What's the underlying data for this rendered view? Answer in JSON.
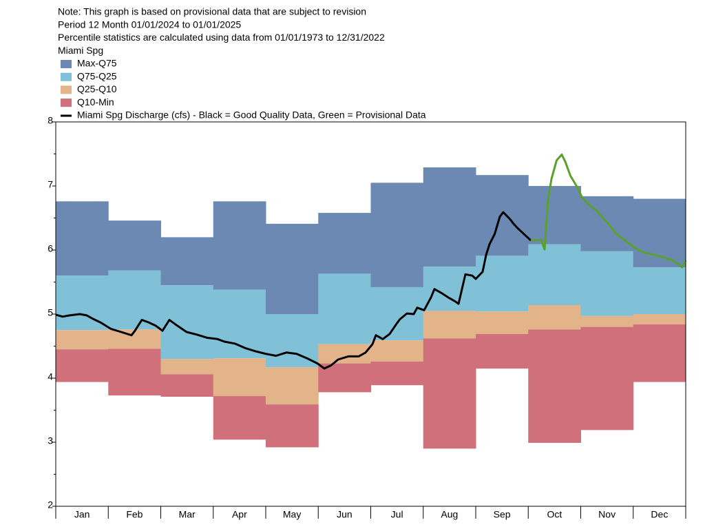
{
  "chart_data": {
    "type": "percentile-band",
    "notes": [
      "Note: This graph is based on provisional data that are subject to revision",
      "Period    12 Month    01/01/2024  to  01/01/2025",
      "Percentile statistics are calculated using data from 01/01/1973 to 12/31/2022",
      "Miami Spg"
    ],
    "categories": [
      "Jan",
      "Feb",
      "Mar",
      "Apr",
      "May",
      "Jun",
      "Jul",
      "Aug",
      "Sep",
      "Oct",
      "Nov",
      "Dec"
    ],
    "levels": [
      [
        6.76,
        6.46,
        6.2,
        6.76,
        6.41,
        6.58,
        7.05,
        7.29,
        7.17,
        7.0,
        6.84,
        6.8
      ],
      [
        5.6,
        5.68,
        5.45,
        5.38,
        5.0,
        5.63,
        5.42,
        5.74,
        5.91,
        6.09,
        5.98,
        5.73
      ],
      [
        4.75,
        4.76,
        4.3,
        4.31,
        4.17,
        4.53,
        4.59,
        5.05,
        5.04,
        5.14,
        4.97,
        5.0
      ],
      [
        4.45,
        4.46,
        4.06,
        3.72,
        3.59,
        4.23,
        4.26,
        4.62,
        4.69,
        4.76,
        4.8,
        4.84
      ],
      [
        3.94,
        3.73,
        3.71,
        3.04,
        2.92,
        3.78,
        3.89,
        2.9,
        4.15,
        2.99,
        3.19,
        3.94
      ]
    ],
    "bands": [
      {
        "name": "Max-Q75",
        "color": "#6b89b2"
      },
      {
        "name": "Q75-Q25",
        "color": "#80c1d7"
      },
      {
        "name": "Q25-Q10",
        "color": "#e3b48a"
      },
      {
        "name": "Q10-Min",
        "color": "#d0707b"
      }
    ],
    "line_legend": "Miami Spg Discharge (cfs) - Black = Good Quality Data, Green = Provisional Data",
    "series": [
      {
        "color": "#000000",
        "x": [
          0,
          4,
          8,
          14,
          18,
          22,
          26,
          32,
          38,
          44,
          46,
          50,
          54,
          58,
          62,
          66,
          70,
          76,
          82,
          88,
          94,
          98,
          104,
          110,
          116,
          122,
          128,
          134,
          140,
          146,
          152,
          156,
          160,
          164,
          170,
          176,
          180,
          184,
          186,
          190,
          194,
          198,
          200,
          204,
          208,
          210,
          214,
          218,
          220,
          224,
          228,
          232,
          234,
          236,
          238,
          242,
          244,
          248,
          250,
          252,
          255,
          258,
          260,
          264,
          266,
          268,
          272,
          276
        ],
        "values": [
          4.99,
          4.96,
          4.98,
          5.0,
          4.98,
          4.92,
          4.87,
          4.77,
          4.72,
          4.67,
          4.74,
          4.91,
          4.87,
          4.82,
          4.74,
          4.91,
          4.83,
          4.72,
          4.68,
          4.63,
          4.61,
          4.57,
          4.54,
          4.47,
          4.42,
          4.38,
          4.35,
          4.4,
          4.38,
          4.31,
          4.23,
          4.15,
          4.2,
          4.29,
          4.34,
          4.34,
          4.4,
          4.53,
          4.67,
          4.61,
          4.69,
          4.85,
          4.92,
          5.01,
          5.0,
          5.1,
          5.06,
          5.26,
          5.39,
          5.33,
          5.26,
          5.2,
          5.16,
          5.39,
          5.62,
          5.6,
          5.55,
          5.66,
          5.92,
          6.09,
          6.25,
          6.52,
          6.59,
          6.48,
          6.41,
          6.35,
          6.25,
          6.15
        ]
      },
      {
        "color": "#5aa02c",
        "x": [
          276,
          282,
          284,
          286,
          288,
          291,
          294,
          296,
          299,
          303,
          306,
          310,
          314,
          320,
          326,
          332,
          338,
          342,
          348,
          354,
          358,
          362,
          364,
          366
        ],
        "values": [
          6.15,
          6.16,
          6.01,
          6.78,
          7.11,
          7.4,
          7.49,
          7.38,
          7.16,
          6.98,
          6.81,
          6.7,
          6.62,
          6.44,
          6.25,
          6.12,
          6.01,
          5.96,
          5.92,
          5.88,
          5.84,
          5.78,
          5.73,
          5.84
        ]
      }
    ],
    "xlim": [
      0,
      366
    ],
    "ylim": [
      2,
      8
    ],
    "yticks": [
      2,
      3,
      4,
      5,
      6,
      7,
      8
    ],
    "yminor_ticks": [
      2.5,
      3.5,
      4.5,
      5.5,
      6.5,
      7.5
    ]
  }
}
